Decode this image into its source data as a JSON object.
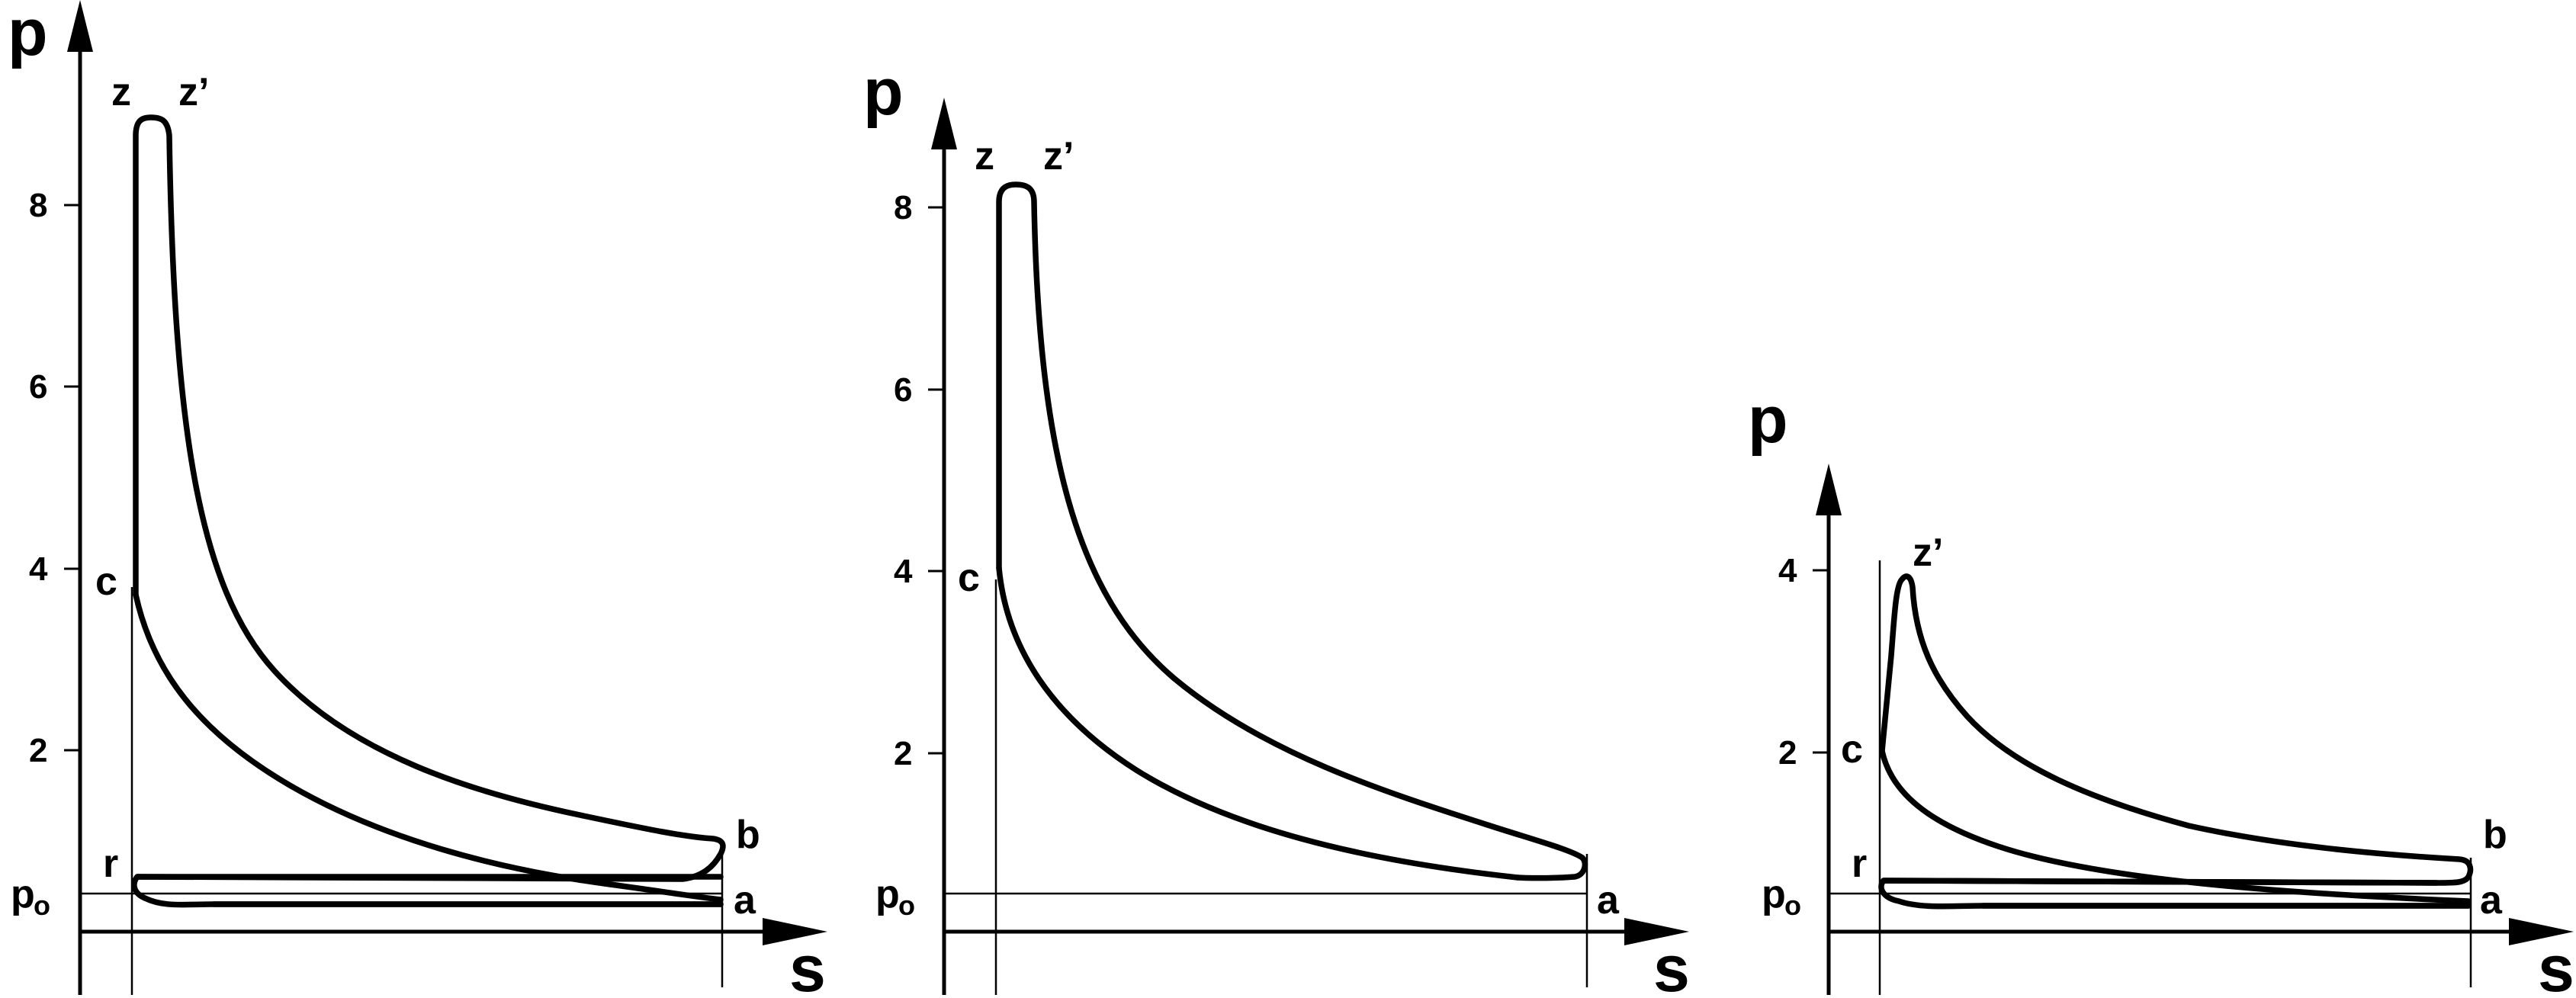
{
  "axes": {
    "y_label": "p",
    "x_label": "s",
    "p0_main": "p",
    "p0_sub": "o"
  },
  "diagrams": [
    {
      "ticks": [
        "2",
        "4",
        "6",
        "8"
      ],
      "points": {
        "z": "z",
        "z_prime": "z’",
        "c": "c",
        "r": "r",
        "b": "b",
        "a": "a"
      }
    },
    {
      "ticks": [
        "2",
        "4",
        "6",
        "8"
      ],
      "points": {
        "z": "z",
        "z_prime": "z’",
        "c": "c",
        "a": "a"
      }
    },
    {
      "ticks": [
        "2",
        "4"
      ],
      "points": {
        "z_prime": "z’",
        "c": "c",
        "r": "r",
        "b": "b",
        "a": "a"
      }
    }
  ]
}
